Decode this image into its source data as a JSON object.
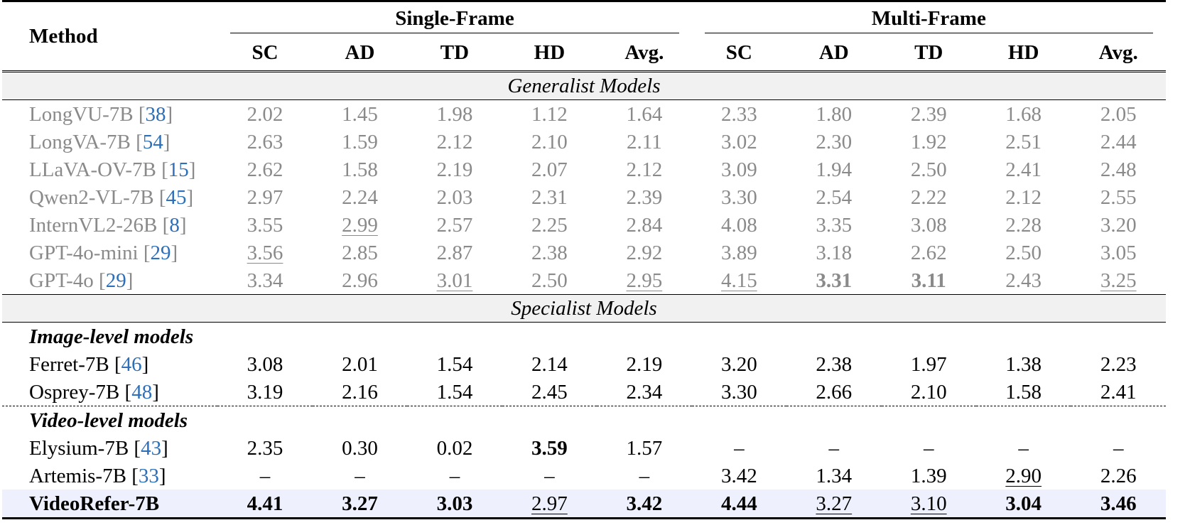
{
  "header": {
    "method_label": "Method",
    "groups": [
      "Single-Frame",
      "Multi-Frame"
    ],
    "columns": [
      "SC",
      "AD",
      "TD",
      "HD",
      "Avg.",
      "SC",
      "AD",
      "TD",
      "HD",
      "Avg."
    ]
  },
  "sections": {
    "generalist": "Generalist Models",
    "specialist": "Specialist Models",
    "image_level": "Image-level models",
    "video_level": "Video-level models"
  },
  "generalist_rows": [
    {
      "name": "LongVU-7B",
      "ref": "38",
      "values": [
        "2.02",
        "1.45",
        "1.98",
        "1.12",
        "1.64",
        "2.33",
        "1.80",
        "2.39",
        "1.68",
        "2.05"
      ]
    },
    {
      "name": "LongVA-7B",
      "ref": "54",
      "values": [
        "2.63",
        "1.59",
        "2.12",
        "2.10",
        "2.11",
        "3.02",
        "2.30",
        "1.92",
        "2.51",
        "2.44"
      ]
    },
    {
      "name": "LLaVA-OV-7B",
      "ref": "15",
      "values": [
        "2.62",
        "1.58",
        "2.19",
        "2.07",
        "2.12",
        "3.09",
        "1.94",
        "2.50",
        "2.41",
        "2.48"
      ]
    },
    {
      "name": "Qwen2-VL-7B",
      "ref": "45",
      "values": [
        "2.97",
        "2.24",
        "2.03",
        "2.31",
        "2.39",
        "3.30",
        "2.54",
        "2.22",
        "2.12",
        "2.55"
      ]
    },
    {
      "name": "InternVL2-26B",
      "ref": "8",
      "values": [
        "3.55",
        "2.99",
        "2.57",
        "2.25",
        "2.84",
        "4.08",
        "3.35",
        "3.08",
        "2.28",
        "3.20"
      ]
    },
    {
      "name": "GPT-4o-mini",
      "ref": "29",
      "values": [
        "3.56",
        "2.85",
        "2.87",
        "2.38",
        "2.92",
        "3.89",
        "3.18",
        "2.62",
        "2.50",
        "3.05"
      ]
    },
    {
      "name": "GPT-4o",
      "ref": "29",
      "values": [
        "3.34",
        "2.96",
        "3.01",
        "2.50",
        "2.95",
        "4.15",
        "3.31",
        "3.11",
        "2.43",
        "3.25"
      ]
    }
  ],
  "image_rows": [
    {
      "name": "Ferret-7B",
      "ref": "46",
      "values": [
        "3.08",
        "2.01",
        "1.54",
        "2.14",
        "2.19",
        "3.20",
        "2.38",
        "1.97",
        "1.38",
        "2.23"
      ]
    },
    {
      "name": "Osprey-7B",
      "ref": "48",
      "values": [
        "3.19",
        "2.16",
        "1.54",
        "2.45",
        "2.34",
        "3.30",
        "2.66",
        "2.10",
        "1.58",
        "2.41"
      ]
    }
  ],
  "video_rows": [
    {
      "name": "Elysium-7B",
      "ref": "43",
      "values": [
        "2.35",
        "0.30",
        "0.02",
        "3.59",
        "1.57",
        "–",
        "–",
        "–",
        "–",
        "–"
      ]
    },
    {
      "name": "Artemis-7B",
      "ref": "33",
      "values": [
        "–",
        "–",
        "–",
        "–",
        "–",
        "3.42",
        "1.34",
        "1.39",
        "2.90",
        "2.26"
      ]
    }
  ],
  "ours_row": {
    "name": "VideoRefer-7B",
    "values": [
      "4.41",
      "3.27",
      "3.03",
      "2.97",
      "3.42",
      "4.44",
      "3.27",
      "3.10",
      "3.04",
      "3.46"
    ]
  }
}
